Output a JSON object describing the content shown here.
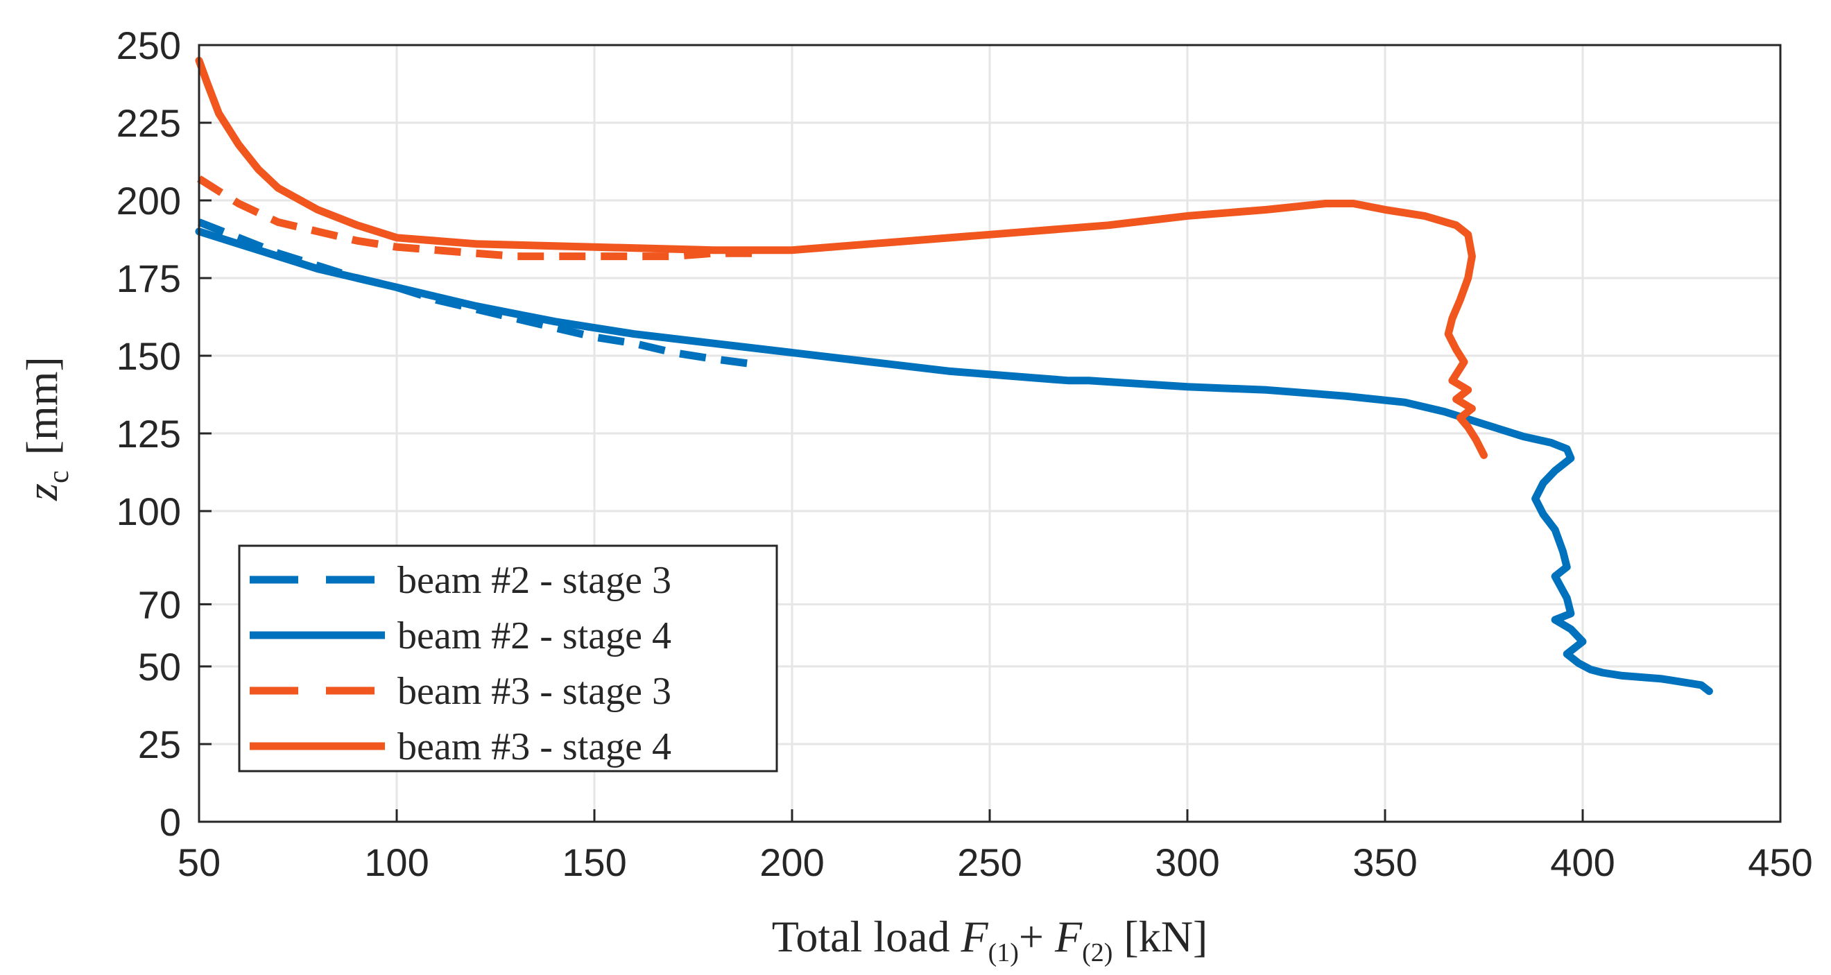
{
  "chart_data": {
    "type": "line",
    "title": "",
    "xlabel": {
      "prefix": "Total load ",
      "f1": "F",
      "f1_sub": "(1)",
      "plus": "+ ",
      "f2": "F",
      "f2_sub": "(2)",
      "unit": " [kN]"
    },
    "ylabel": {
      "symbol": "z",
      "symbol_sub": "c",
      "unit": "[mm]"
    },
    "xlim": [
      50,
      450
    ],
    "ylim": [
      0,
      250
    ],
    "xticks": [
      50,
      100,
      150,
      200,
      250,
      300,
      350,
      400,
      450
    ],
    "yticks": [
      0,
      25,
      50,
      70,
      100,
      125,
      150,
      175,
      200,
      225,
      250
    ],
    "grid": true,
    "legend_position": "bottom-left",
    "colors": {
      "blue": "#0072BD",
      "orange": "#F0561E",
      "grid": "#e6e6e6",
      "axis": "#262626"
    },
    "series": [
      {
        "name": "beam #2 - stage 3",
        "color": "#0072BD",
        "dash": "dashed",
        "x": [
          50,
          60,
          70,
          80,
          90,
          100,
          110,
          120,
          130,
          140,
          150,
          160,
          170,
          180,
          192
        ],
        "y": [
          193,
          188,
          183,
          179,
          175,
          172,
          168,
          165,
          162,
          159,
          156,
          154,
          151,
          149,
          147
        ]
      },
      {
        "name": "beam #2 - stage 4",
        "color": "#0072BD",
        "dash": "solid",
        "x": [
          50,
          60,
          70,
          80,
          90,
          100,
          120,
          140,
          160,
          180,
          200,
          220,
          240,
          260,
          270,
          275,
          300,
          320,
          340,
          355,
          365,
          375,
          385,
          392,
          396,
          397,
          393,
          390,
          388,
          390,
          393,
          395,
          396,
          393,
          396,
          397,
          393,
          397,
          400,
          396,
          399,
          402,
          405,
          410,
          420,
          430,
          432
        ],
        "y": [
          190,
          186,
          182,
          178,
          175,
          172,
          166,
          161,
          157,
          154,
          151,
          148,
          145,
          143,
          142,
          142,
          140,
          139,
          137,
          135,
          132,
          128,
          124,
          122,
          120,
          117,
          113,
          109,
          104,
          99,
          94,
          87,
          82,
          79,
          72,
          67,
          65,
          62,
          58,
          54,
          51,
          49,
          48,
          47,
          46,
          44,
          42
        ]
      },
      {
        "name": "beam #3 - stage 3",
        "color": "#F0561E",
        "dash": "dashed",
        "x": [
          50,
          55,
          60,
          65,
          70,
          80,
          90,
          100,
          110,
          120,
          130,
          140,
          150,
          160,
          170,
          180,
          190
        ],
        "y": [
          207,
          203,
          199,
          196,
          193,
          190,
          187,
          185,
          184,
          183,
          182,
          182,
          182,
          182,
          182,
          183,
          183
        ]
      },
      {
        "name": "beam #3 - stage 4",
        "color": "#F0561E",
        "dash": "solid",
        "x": [
          50,
          52,
          55,
          60,
          65,
          70,
          80,
          90,
          100,
          120,
          150,
          180,
          200,
          220,
          250,
          280,
          300,
          320,
          335,
          342,
          350,
          360,
          368,
          371,
          372,
          371,
          369,
          367,
          366,
          368,
          370,
          367,
          371,
          368,
          372,
          369,
          371,
          373,
          375
        ],
        "y": [
          245,
          238,
          228,
          218,
          210,
          204,
          197,
          192,
          188,
          186,
          185,
          184,
          184,
          186,
          189,
          192,
          195,
          197,
          199,
          199,
          197,
          195,
          192,
          189,
          182,
          175,
          168,
          162,
          157,
          152,
          148,
          142,
          139,
          136,
          133,
          130,
          127,
          123,
          118
        ]
      }
    ]
  }
}
